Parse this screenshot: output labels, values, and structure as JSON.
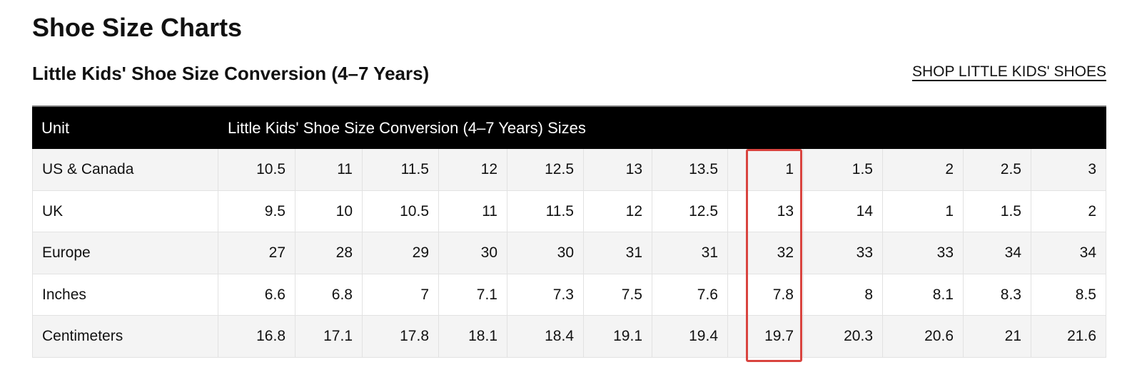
{
  "header": {
    "title": "Shoe Size Charts",
    "subtitle": "Little Kids' Shoe Size Conversion (4–7 Years)",
    "link": "SHOP LITTLE KIDS' SHOES"
  },
  "table": {
    "columns": [
      "Unit",
      "Little Kids' Shoe Size Conversion (4–7 Years) Sizes"
    ],
    "rows": [
      [
        "US & Canada",
        "10.5",
        "11",
        "11.5",
        "12",
        "12.5",
        "13",
        "13.5",
        "1",
        "1.5",
        "2",
        "2.5",
        "3"
      ],
      [
        "UK",
        "9.5",
        "10",
        "10.5",
        "11",
        "11.5",
        "12",
        "12.5",
        "13",
        "14",
        "1",
        "1.5",
        "2"
      ],
      [
        "Europe",
        "27",
        "28",
        "29",
        "30",
        "30",
        "31",
        "31",
        "32",
        "33",
        "33",
        "34",
        "34"
      ],
      [
        "Inches",
        "6.6",
        "6.8",
        "7",
        "7.1",
        "7.3",
        "7.5",
        "7.6",
        "7.8",
        "8",
        "8.1",
        "8.3",
        "8.5"
      ],
      [
        "Centimeters",
        "16.8",
        "17.1",
        "17.8",
        "18.1",
        "18.4",
        "19.1",
        "19.4",
        "19.7",
        "20.3",
        "20.6",
        "21",
        "21.6"
      ]
    ]
  }
}
